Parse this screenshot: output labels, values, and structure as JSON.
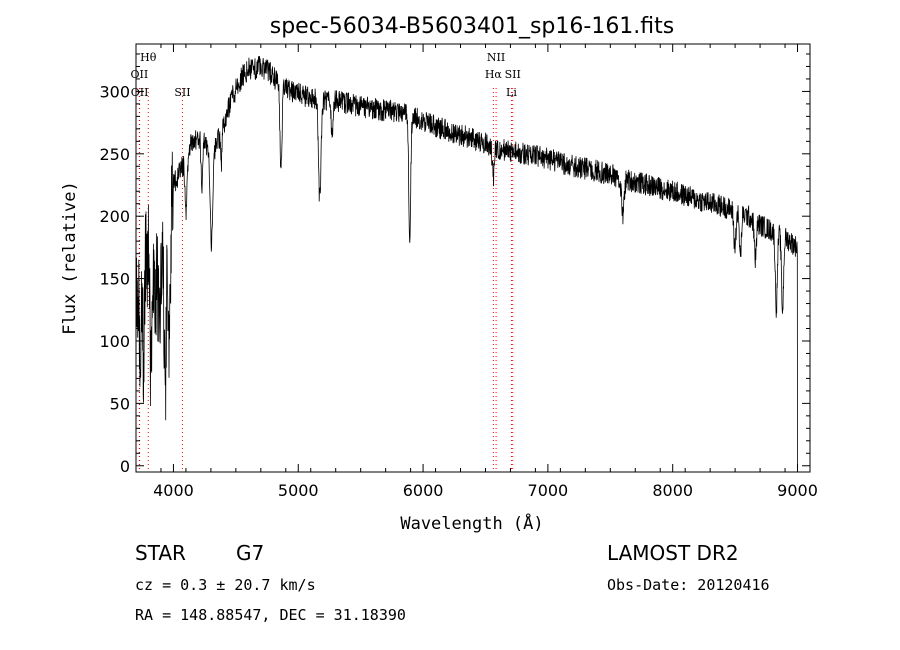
{
  "title": "spec-56034-B5603401_sp16-161.fits",
  "xlabel": "Wavelength (Å)",
  "ylabel": "Flux (relative)",
  "info": {
    "class_label": "STAR",
    "subclass_label": "G7",
    "survey": "LAMOST DR2",
    "cz": "cz = 0.3 ± 20.7 km/s",
    "obs_date": "Obs-Date: 20120416",
    "radec": "RA = 148.88547, DEC =  31.18390"
  },
  "chart_data": {
    "type": "line",
    "title": "spec-56034-B5603401_sp16-161.fits",
    "xlabel": "Wavelength (Å)",
    "ylabel": "Flux (relative)",
    "xlim": [
      3700,
      9100
    ],
    "ylim": [
      -5,
      338
    ],
    "xticks": [
      4000,
      5000,
      6000,
      7000,
      8000,
      9000
    ],
    "yticks": [
      0,
      50,
      100,
      150,
      200,
      250,
      300
    ],
    "grid": false,
    "spectrum_color": "#000000",
    "line_marker_color": "#ff0000",
    "spectral_lines": [
      {
        "label": "Hθ",
        "wavelength": 3798,
        "tier": 0
      },
      {
        "label": "OII",
        "wavelength": 3727,
        "tier": 1
      },
      {
        "label": "OII",
        "wavelength": 3729,
        "tier": 2
      },
      {
        "label": "SII",
        "wavelength": 4072,
        "tier": 2
      },
      {
        "label": "NII",
        "wavelength": 6585,
        "tier": 0
      },
      {
        "label": "Hα",
        "wavelength": 6563,
        "tier": 1
      },
      {
        "label": "SII",
        "wavelength": 6718,
        "tier": 1
      },
      {
        "label": "Li",
        "wavelength": 6708,
        "tier": 2
      }
    ],
    "continuum_points": [
      [
        3700,
        130
      ],
      [
        3750,
        160
      ],
      [
        3800,
        170
      ],
      [
        3850,
        140
      ],
      [
        3900,
        150
      ],
      [
        3950,
        170
      ],
      [
        4000,
        225
      ],
      [
        4050,
        235
      ],
      [
        4100,
        245
      ],
      [
        4150,
        260
      ],
      [
        4200,
        262
      ],
      [
        4250,
        262
      ],
      [
        4300,
        245
      ],
      [
        4350,
        260
      ],
      [
        4400,
        272
      ],
      [
        4450,
        290
      ],
      [
        4500,
        302
      ],
      [
        4550,
        312
      ],
      [
        4600,
        318
      ],
      [
        4650,
        318
      ],
      [
        4700,
        320
      ],
      [
        4750,
        317
      ],
      [
        4800,
        312
      ],
      [
        4850,
        305
      ],
      [
        4900,
        302
      ],
      [
        5000,
        298
      ],
      [
        5100,
        295
      ],
      [
        5200,
        293
      ],
      [
        5300,
        292
      ],
      [
        5400,
        290
      ],
      [
        5500,
        288
      ],
      [
        5600,
        286
      ],
      [
        5700,
        285
      ],
      [
        5800,
        284
      ],
      [
        5900,
        280
      ],
      [
        6000,
        276
      ],
      [
        6100,
        272
      ],
      [
        6200,
        268
      ],
      [
        6300,
        265
      ],
      [
        6400,
        262
      ],
      [
        6500,
        258
      ],
      [
        6600,
        254
      ],
      [
        6700,
        252
      ],
      [
        6800,
        250
      ],
      [
        6900,
        248
      ],
      [
        7000,
        246
      ],
      [
        7200,
        240
      ],
      [
        7400,
        236
      ],
      [
        7600,
        230
      ],
      [
        7800,
        225
      ],
      [
        8000,
        220
      ],
      [
        8200,
        213
      ],
      [
        8400,
        208
      ],
      [
        8600,
        200
      ],
      [
        8700,
        193
      ],
      [
        8800,
        188
      ],
      [
        8900,
        183
      ],
      [
        9000,
        175
      ]
    ],
    "absorption_features": [
      {
        "wavelength": 3734,
        "depth": 60,
        "width": 6
      },
      {
        "wavelength": 3760,
        "depth": 70,
        "width": 6
      },
      {
        "wavelength": 3820,
        "depth": 90,
        "width": 8
      },
      {
        "wavelength": 3889,
        "depth": 50,
        "width": 6
      },
      {
        "wavelength": 3934,
        "depth": 110,
        "width": 8
      },
      {
        "wavelength": 3968,
        "depth": 100,
        "width": 8
      },
      {
        "wavelength": 4101,
        "depth": 40,
        "width": 8
      },
      {
        "wavelength": 4227,
        "depth": 40,
        "width": 6
      },
      {
        "wavelength": 4305,
        "depth": 70,
        "width": 10
      },
      {
        "wavelength": 4383,
        "depth": 25,
        "width": 6
      },
      {
        "wavelength": 4861,
        "depth": 70,
        "width": 8
      },
      {
        "wavelength": 5172,
        "depth": 80,
        "width": 10
      },
      {
        "wavelength": 5270,
        "depth": 30,
        "width": 6
      },
      {
        "wavelength": 5893,
        "depth": 95,
        "width": 8
      },
      {
        "wavelength": 6563,
        "depth": 25,
        "width": 8
      },
      {
        "wavelength": 7600,
        "depth": 30,
        "width": 10
      },
      {
        "wavelength": 8498,
        "depth": 30,
        "width": 8
      },
      {
        "wavelength": 8542,
        "depth": 35,
        "width": 8
      },
      {
        "wavelength": 8662,
        "depth": 30,
        "width": 8
      },
      {
        "wavelength": 8830,
        "depth": 60,
        "width": 8
      },
      {
        "wavelength": 8880,
        "depth": 60,
        "width": 8
      }
    ],
    "noise_amplitude": 9,
    "blue_end_noise_amplitude": 45,
    "blue_end_noise_cutoff": 4000
  }
}
